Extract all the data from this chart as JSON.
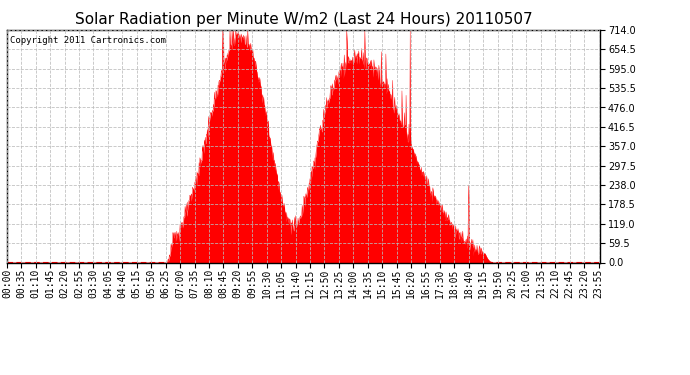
{
  "title": "Solar Radiation per Minute W/m2 (Last 24 Hours) 20110507",
  "copyright_text": "Copyright 2011 Cartronics.com",
  "y_max": 714.0,
  "y_min": 0.0,
  "y_ticks": [
    0.0,
    59.5,
    119.0,
    178.5,
    238.0,
    297.5,
    357.0,
    416.5,
    476.0,
    535.5,
    595.0,
    654.5,
    714.0
  ],
  "fill_color": "#ff0000",
  "line_color": "#ff0000",
  "bg_color": "#ffffff",
  "grid_color": "#bbbbbb",
  "dashed_line_color": "#ff0000",
  "title_fontsize": 11,
  "tick_fontsize": 7,
  "num_points": 1440,
  "sunrise_min": 385,
  "sunset_min": 1180,
  "morning_peak_min": 560,
  "morning_peak_val": 655,
  "afternoon_peak_min": 850,
  "afternoon_peak_val": 625,
  "tall_spike_min": 978,
  "tall_spike_val": 714,
  "dip_min": 695,
  "dip_val": 175
}
